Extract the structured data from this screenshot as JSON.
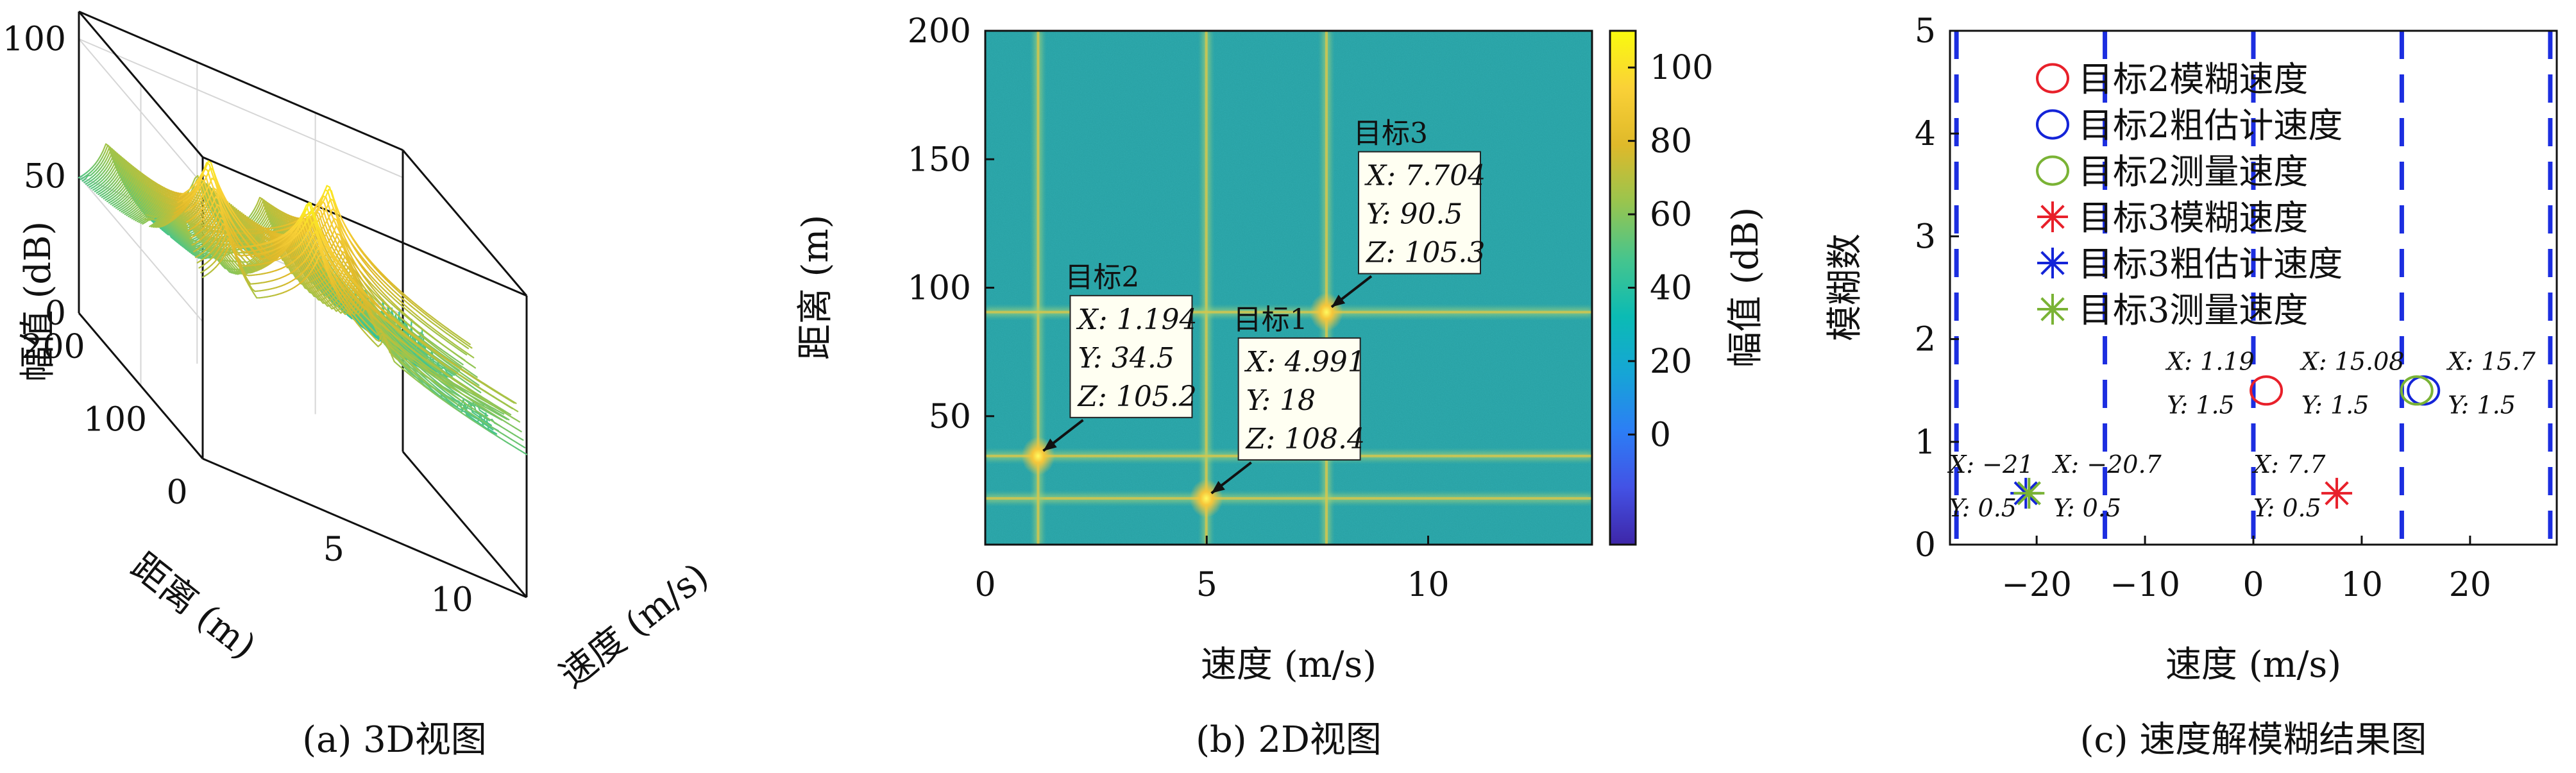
{
  "captions": {
    "a": "(a) 3D视图",
    "b": "(b) 2D视图",
    "c": "(c) 速度解模糊结果图"
  },
  "colors": {
    "colormap": [
      "#3e26a8",
      "#4352e5",
      "#2c7ef5",
      "#16a5d6",
      "#0bbbb4",
      "#46c58d",
      "#99c54e",
      "#dfb92a",
      "#fad137",
      "#f9fb0e"
    ],
    "background_field": "#2ca5a7",
    "red": "#e8202a",
    "blue": "#1424d8",
    "green": "#7ab335",
    "fold_line": "#1c2ee0",
    "annotation_box": "#fffff2"
  },
  "chart_data": [
    {
      "id": "a",
      "type": "surface3d",
      "zlabel": "幅值 (dB)",
      "ylabel": "距离 (m)",
      "xlabel": "速度 (m/s)",
      "z_ticks": [
        "0",
        "50",
        "100"
      ],
      "y_ticks": [
        "0",
        "100",
        "200"
      ],
      "x_ticks": [
        "5",
        "10"
      ],
      "xlim": [
        0,
        13.7
      ],
      "ylim": [
        0,
        200
      ],
      "zlim": [
        0,
        110
      ],
      "peaks": [
        {
          "x": 1.194,
          "y": 34.5,
          "z": 105.2
        },
        {
          "x": 4.991,
          "y": 18,
          "z": 108.4
        },
        {
          "x": 7.704,
          "y": 90.5,
          "z": 105.3
        }
      ],
      "noise_floor": 40
    },
    {
      "id": "b",
      "type": "heatmap",
      "xlabel": "速度 (m/s)",
      "ylabel": "距离 (m)",
      "colorbar_label": "幅值 (dB)",
      "x_ticks": [
        0,
        5,
        10
      ],
      "y_ticks": [
        50,
        100,
        150,
        200
      ],
      "colorbar_ticks": [
        0,
        20,
        40,
        60,
        80,
        100
      ],
      "xlim": [
        0,
        13.7
      ],
      "ylim": [
        0,
        200
      ],
      "clim": [
        -30,
        110
      ],
      "targets": [
        {
          "label": "目标1",
          "x": 4.991,
          "y": 18,
          "z": 108.4,
          "lines": [
            "X: 4.991",
            "Y: 18",
            "Z: 108.4"
          ]
        },
        {
          "label": "目标2",
          "x": 1.194,
          "y": 34.5,
          "z": 105.2,
          "lines": [
            "X: 1.194",
            "Y: 34.5",
            "Z: 105.2"
          ]
        },
        {
          "label": "目标3",
          "x": 7.704,
          "y": 90.5,
          "z": 105.3,
          "lines": [
            "X: 7.704",
            "Y: 90.5",
            "Z: 105.3"
          ]
        }
      ]
    },
    {
      "id": "c",
      "type": "scatter",
      "xlabel": "速度 (m/s)",
      "ylabel": "模糊数",
      "x_ticks": [
        -20,
        -10,
        0,
        10,
        20
      ],
      "x_tick_labels": [
        "−20",
        "−10",
        "0",
        "10",
        "20"
      ],
      "y_ticks": [
        0,
        1,
        2,
        3,
        4,
        5
      ],
      "xlim": [
        -28,
        28
      ],
      "ylim": [
        0,
        5
      ],
      "fold_lines_x": [
        -27.4,
        -13.7,
        0,
        13.7,
        27.4
      ],
      "legend": [
        {
          "label": "目标2模糊速度",
          "marker": "circle",
          "color": "red"
        },
        {
          "label": "目标2粗估计速度",
          "marker": "circle",
          "color": "blue"
        },
        {
          "label": "目标2测量速度",
          "marker": "circle",
          "color": "green"
        },
        {
          "label": "目标3模糊速度",
          "marker": "asterisk",
          "color": "red"
        },
        {
          "label": "目标3粗估计速度",
          "marker": "asterisk",
          "color": "blue"
        },
        {
          "label": "目标3测量速度",
          "marker": "asterisk",
          "color": "green"
        }
      ],
      "series": [
        {
          "name": "目标2模糊速度",
          "marker": "circle",
          "color": "red",
          "x": 1.19,
          "y": 1.5
        },
        {
          "name": "目标2粗估计速度",
          "marker": "circle",
          "color": "blue",
          "x": 15.7,
          "y": 1.5
        },
        {
          "name": "目标2测量速度",
          "marker": "circle",
          "color": "green",
          "x": 15.08,
          "y": 1.5
        },
        {
          "name": "目标3模糊速度",
          "marker": "asterisk",
          "color": "red",
          "x": 7.7,
          "y": 0.5
        },
        {
          "name": "目标3粗估计速度",
          "marker": "asterisk",
          "color": "blue",
          "x": -21,
          "y": 0.5
        },
        {
          "name": "目标3测量速度",
          "marker": "asterisk",
          "color": "green",
          "x": -20.7,
          "y": 0.5
        }
      ],
      "datatips": [
        {
          "x_text": "X: 1.19",
          "y_text": "Y: 1.5",
          "x": 1.19,
          "y": 1.5
        },
        {
          "x_text": "X: 15.08",
          "y_text": "Y: 1.5",
          "x": 15.08,
          "y": 1.5
        },
        {
          "x_text": "X: 15.7",
          "y_text": "Y: 1.5",
          "x": 15.7,
          "y": 1.5
        },
        {
          "x_text": "X: 7.7",
          "y_text": "Y: 0.5",
          "x": 7.7,
          "y": 0.5
        },
        {
          "x_text": "X: −21",
          "y_text": "Y: 0.5",
          "x": -21,
          "y": 0.5
        },
        {
          "x_text": "X: −20.7",
          "y_text": "Y: 0.5",
          "x": -20.7,
          "y": 0.5
        }
      ]
    }
  ]
}
